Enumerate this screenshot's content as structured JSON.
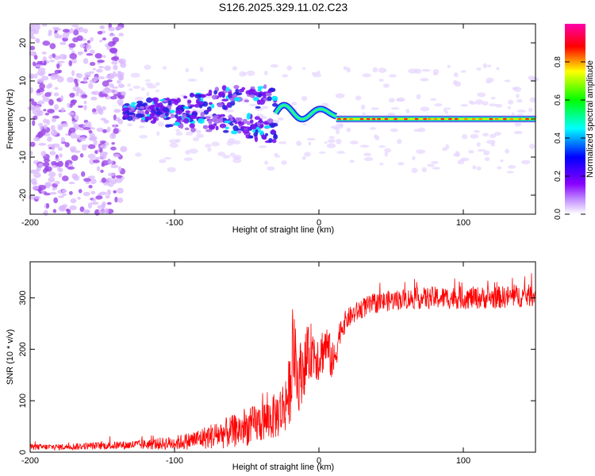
{
  "title": "S126.2025.329.11.02.C23",
  "chart_data": [
    {
      "type": "heatmap",
      "name": "spectrogram",
      "xlabel": "Height of straight line (km)",
      "ylabel": "Frequency (Hz)",
      "xlim": [
        -200,
        150
      ],
      "ylim": [
        -25,
        25
      ],
      "xticks": [
        -200,
        -100,
        0,
        100
      ],
      "xtick_labels": [
        "-200",
        "-100",
        "0",
        "100"
      ],
      "yticks": [
        -20,
        -10,
        0,
        10,
        20
      ],
      "ytick_labels": [
        "-20",
        "-10",
        "0",
        "10",
        "20"
      ],
      "colorbar": {
        "label": "Normalized spectral amplitude",
        "range": [
          0,
          1
        ],
        "ticks": [
          0.0,
          0.2,
          0.4,
          0.6,
          0.8
        ],
        "tick_labels": [
          "0.0",
          "0.2",
          "0.4",
          "0.6",
          "0.8"
        ],
        "colors": [
          "#ffffff",
          "#8800ff",
          "#0000ff",
          "#00ffff",
          "#00ff00",
          "#ffff00",
          "#ff0000",
          "#ff00aa"
        ]
      },
      "features": [
        {
          "label": "carrier line",
          "x_range": [
            12,
            150
          ],
          "freq": 0,
          "amplitude": 0.8
        },
        {
          "label": "transition",
          "x_range": [
            -30,
            12
          ],
          "freq_range": [
            -1,
            5
          ],
          "amplitude": 0.5
        },
        {
          "label": "scattered",
          "x_range": [
            -135,
            -30
          ],
          "freq_range": [
            -10,
            10
          ],
          "amplitude": 0.25
        },
        {
          "label": "noise",
          "x_range": [
            -200,
            -135
          ],
          "freq_range": [
            -25,
            25
          ],
          "amplitude": 0.08
        }
      ]
    },
    {
      "type": "line",
      "name": "snr",
      "xlabel": "Height of straight line (km)",
      "ylabel": "SNR (10 * v/v)",
      "xlim": [
        -200,
        150
      ],
      "ylim": [
        0,
        370
      ],
      "xticks": [
        -200,
        -100,
        0,
        100
      ],
      "xtick_labels": [
        "-200",
        "-100",
        "0",
        "100"
      ],
      "yticks": [
        0,
        100,
        200,
        300
      ],
      "ytick_labels": [
        "0",
        "100",
        "200",
        "300"
      ],
      "color": "#ff0000",
      "series": [
        {
          "name": "SNR",
          "x": [
            -200,
            -180,
            -160,
            -140,
            -120,
            -100,
            -90,
            -80,
            -70,
            -60,
            -50,
            -40,
            -30,
            -25,
            -20,
            -18,
            -15,
            -10,
            -5,
            0,
            5,
            10,
            15,
            20,
            25,
            30,
            40,
            50,
            60,
            80,
            100,
            120,
            150
          ],
          "y": [
            10,
            10,
            12,
            13,
            15,
            18,
            22,
            28,
            34,
            40,
            48,
            58,
            70,
            85,
            120,
            210,
            140,
            170,
            200,
            185,
            210,
            170,
            240,
            260,
            270,
            280,
            290,
            295,
            298,
            300,
            300,
            300,
            305
          ],
          "noise_amplitude": [
            6,
            6,
            7,
            8,
            10,
            14,
            17,
            22,
            28,
            32,
            36,
            40,
            45,
            55,
            70,
            80,
            70,
            60,
            55,
            50,
            45,
            40,
            25,
            20,
            20,
            20,
            20,
            20,
            20,
            22,
            22,
            22,
            22
          ]
        }
      ]
    }
  ]
}
